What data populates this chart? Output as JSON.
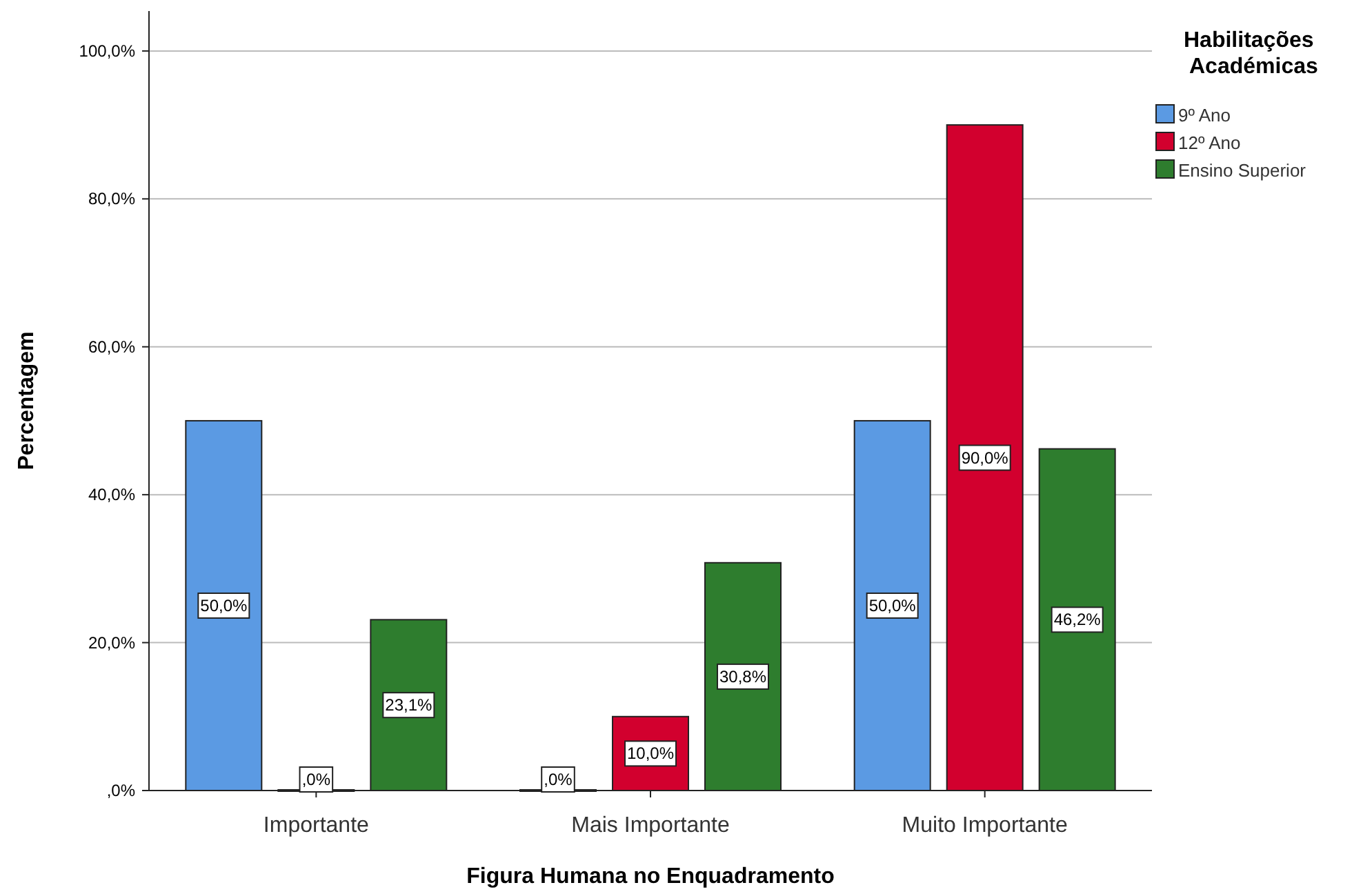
{
  "chart_data": {
    "type": "bar",
    "xlabel": "Figura Humana no Enquadramento",
    "ylabel": "Percentagem",
    "legend_title": "Habilitações Académicas",
    "categories": [
      "Importante",
      "Mais Importante",
      "Muito Importante"
    ],
    "series": [
      {
        "name": "9º Ano",
        "color": "#5b9ae3",
        "values": [
          50.0,
          0,
          50.0
        ],
        "value_labels": [
          "50,0%",
          ",0%",
          "50,0%"
        ]
      },
      {
        "name": "12º Ano",
        "color": "#d2002e",
        "values": [
          0,
          10.0,
          90.0
        ],
        "value_labels": [
          ",0%",
          "10,0%",
          "90,0%"
        ]
      },
      {
        "name": "Ensino Superior",
        "color": "#2e7d2e",
        "values": [
          23.1,
          30.8,
          46.2
        ],
        "value_labels": [
          "23,1%",
          "30,8%",
          "46,2%"
        ]
      }
    ],
    "ylim": [
      0,
      105.4
    ],
    "yticks": [
      {
        "value": 0,
        "label": ",0%"
      },
      {
        "value": 20,
        "label": "20,0%"
      },
      {
        "value": 40,
        "label": "40,0%"
      },
      {
        "value": 60,
        "label": "60,0%"
      },
      {
        "value": 80,
        "label": "80,0%"
      },
      {
        "value": 100,
        "label": "100,0%"
      }
    ],
    "grid": "y",
    "legend": "top right"
  }
}
